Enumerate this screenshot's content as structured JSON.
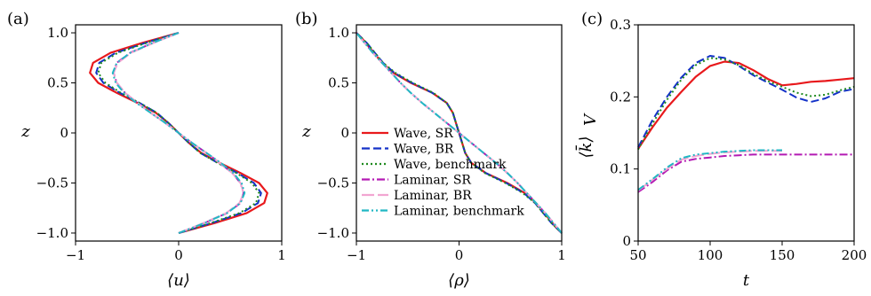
{
  "panels": {
    "a": {
      "label": "(a)"
    },
    "b": {
      "label": "(b)"
    },
    "c": {
      "label": "(c)"
    }
  },
  "colors": {
    "wave_sr": "#e8191c",
    "wave_br": "#1432c8",
    "wave_benchmark": "#1f8a1f",
    "laminar_sr": "#b31ab3",
    "laminar_br": "#f2a6d2",
    "laminar_benchmark": "#20b8c4"
  },
  "chart_data": [
    {
      "type": "line",
      "panel": "a",
      "xlabel": "⟨u⟩",
      "ylabel": "z",
      "xlim": [
        -1,
        1
      ],
      "ylim": [
        -1.08,
        1.08
      ],
      "xticks": [
        "−1",
        "0",
        "1"
      ],
      "yticks": [
        "1.0",
        "0.5",
        "0",
        "−0.5",
        "−1.0"
      ],
      "z": [
        -1.0,
        -0.9,
        -0.8,
        -0.7,
        -0.6,
        -0.5,
        -0.4,
        -0.3,
        -0.2,
        -0.1,
        0.0,
        0.1,
        0.2,
        0.3,
        0.4,
        0.5,
        0.6,
        0.7,
        0.8,
        0.9,
        1.0
      ],
      "series": [
        {
          "key": "wave_sr",
          "style": "solid",
          "values": [
            0.0,
            0.35,
            0.66,
            0.83,
            0.86,
            0.78,
            0.6,
            0.4,
            0.22,
            0.1,
            0.0,
            -0.1,
            -0.22,
            -0.4,
            -0.6,
            -0.78,
            -0.86,
            -0.83,
            -0.66,
            -0.35,
            0.0
          ]
        },
        {
          "key": "wave_br",
          "style": "dashed",
          "values": [
            0.0,
            0.32,
            0.61,
            0.77,
            0.8,
            0.73,
            0.57,
            0.38,
            0.21,
            0.1,
            0.0,
            -0.1,
            -0.21,
            -0.38,
            -0.57,
            -0.73,
            -0.8,
            -0.77,
            -0.61,
            -0.32,
            0.0
          ]
        },
        {
          "key": "wave_benchmark",
          "style": "dotted",
          "values": [
            0.0,
            0.31,
            0.59,
            0.75,
            0.78,
            0.71,
            0.56,
            0.38,
            0.21,
            0.1,
            0.0,
            -0.1,
            -0.21,
            -0.38,
            -0.56,
            -0.71,
            -0.78,
            -0.75,
            -0.59,
            -0.31,
            0.0
          ]
        },
        {
          "key": "laminar_sr",
          "style": "dashdot",
          "values": [
            0.0,
            0.25,
            0.47,
            0.6,
            0.63,
            0.6,
            0.52,
            0.4,
            0.27,
            0.13,
            0.0,
            -0.13,
            -0.27,
            -0.4,
            -0.52,
            -0.6,
            -0.63,
            -0.6,
            -0.47,
            -0.25,
            0.0
          ]
        },
        {
          "key": "laminar_br",
          "style": "longdash",
          "values": [
            0.0,
            0.24,
            0.46,
            0.59,
            0.63,
            0.6,
            0.52,
            0.4,
            0.27,
            0.13,
            0.0,
            -0.13,
            -0.27,
            -0.4,
            -0.52,
            -0.6,
            -0.63,
            -0.59,
            -0.46,
            -0.24,
            0.0
          ]
        },
        {
          "key": "laminar_benchmark",
          "style": "dashdotdot",
          "values": [
            0.0,
            0.25,
            0.47,
            0.6,
            0.64,
            0.61,
            0.53,
            0.41,
            0.27,
            0.13,
            0.0,
            -0.13,
            -0.27,
            -0.41,
            -0.53,
            -0.61,
            -0.64,
            -0.6,
            -0.47,
            -0.25,
            0.0
          ]
        }
      ]
    },
    {
      "type": "line",
      "panel": "b",
      "xlabel": "⟨ρ⟩",
      "ylabel": "z",
      "xlim": [
        -1,
        1
      ],
      "ylim": [
        -1.08,
        1.08
      ],
      "xticks": [
        "−1",
        "0",
        "1"
      ],
      "yticks": [
        "1.0",
        "0.5",
        "0",
        "−0.5",
        "−1.0"
      ],
      "z": [
        -1.0,
        -0.95,
        -0.9,
        -0.8,
        -0.7,
        -0.6,
        -0.5,
        -0.4,
        -0.3,
        -0.2,
        -0.1,
        0.0,
        0.1,
        0.2,
        0.3,
        0.4,
        0.5,
        0.6,
        0.7,
        0.8,
        0.9,
        0.95,
        1.0
      ],
      "series": [
        {
          "key": "wave_sr",
          "style": "solid",
          "values": [
            1.0,
            0.95,
            0.91,
            0.83,
            0.75,
            0.64,
            0.47,
            0.26,
            0.12,
            0.06,
            0.03,
            0.0,
            -0.03,
            -0.06,
            -0.12,
            -0.26,
            -0.47,
            -0.64,
            -0.75,
            -0.83,
            -0.91,
            -0.95,
            -1.0
          ]
        },
        {
          "key": "wave_br",
          "style": "dashed",
          "values": [
            1.0,
            0.95,
            0.9,
            0.82,
            0.74,
            0.63,
            0.46,
            0.26,
            0.12,
            0.06,
            0.03,
            0.0,
            -0.03,
            -0.06,
            -0.12,
            -0.26,
            -0.46,
            -0.63,
            -0.74,
            -0.82,
            -0.9,
            -0.95,
            -1.0
          ]
        },
        {
          "key": "wave_benchmark",
          "style": "dotted",
          "values": [
            1.0,
            0.95,
            0.9,
            0.82,
            0.74,
            0.62,
            0.45,
            0.25,
            0.12,
            0.06,
            0.03,
            0.0,
            -0.03,
            -0.06,
            -0.12,
            -0.25,
            -0.45,
            -0.62,
            -0.74,
            -0.82,
            -0.9,
            -0.95,
            -1.0
          ]
        },
        {
          "key": "laminar_sr",
          "style": "dashdot",
          "values": [
            1.0,
            0.96,
            0.92,
            0.84,
            0.75,
            0.66,
            0.57,
            0.47,
            0.36,
            0.24,
            0.12,
            0.0,
            -0.12,
            -0.24,
            -0.36,
            -0.47,
            -0.57,
            -0.66,
            -0.75,
            -0.84,
            -0.92,
            -0.96,
            -1.0
          ]
        },
        {
          "key": "laminar_br",
          "style": "longdash",
          "values": [
            1.0,
            0.96,
            0.92,
            0.84,
            0.75,
            0.66,
            0.57,
            0.47,
            0.36,
            0.24,
            0.12,
            0.0,
            -0.12,
            -0.24,
            -0.36,
            -0.47,
            -0.57,
            -0.66,
            -0.75,
            -0.84,
            -0.92,
            -0.96,
            -1.0
          ]
        },
        {
          "key": "laminar_benchmark",
          "style": "dashdotdot",
          "values": [
            1.0,
            0.96,
            0.92,
            0.84,
            0.75,
            0.66,
            0.57,
            0.47,
            0.36,
            0.24,
            0.12,
            0.0,
            -0.12,
            -0.24,
            -0.36,
            -0.47,
            -0.57,
            -0.66,
            -0.75,
            -0.84,
            -0.92,
            -0.96,
            -1.0
          ]
        }
      ],
      "legend": {
        "placement": "bottom-left",
        "entries": [
          {
            "key": "wave_sr",
            "label": "Wave, SR"
          },
          {
            "key": "wave_br",
            "label": "Wave, BR"
          },
          {
            "key": "wave_benchmark",
            "label": "Wave, benchmark"
          },
          {
            "key": "laminar_sr",
            "label": "Laminar, SR"
          },
          {
            "key": "laminar_br",
            "label": "Laminar, BR"
          },
          {
            "key": "laminar_benchmark",
            "label": "Laminar, benchmark"
          }
        ]
      }
    },
    {
      "type": "line",
      "panel": "c",
      "xlabel": "t",
      "ylabel": "⟨k̄⟩",
      "ylabel_subscript": "V",
      "xlim": [
        50,
        200
      ],
      "ylim": [
        0,
        0.3
      ],
      "xticks": [
        "50",
        "100",
        "150",
        "200"
      ],
      "yticks": [
        "0",
        "0.1",
        "0.2",
        "0.3"
      ],
      "series": [
        {
          "key": "wave_sr",
          "style": "solid",
          "x": [
            50,
            60,
            70,
            80,
            90,
            100,
            110,
            120,
            130,
            140,
            150,
            160,
            170,
            180,
            190,
            200
          ],
          "values": [
            0.128,
            0.158,
            0.185,
            0.207,
            0.228,
            0.243,
            0.249,
            0.247,
            0.237,
            0.225,
            0.216,
            0.218,
            0.221,
            0.222,
            0.224,
            0.226
          ]
        },
        {
          "key": "wave_br",
          "style": "dashed",
          "x": [
            50,
            60,
            70,
            80,
            90,
            100,
            110,
            120,
            130,
            140,
            150,
            160,
            170,
            180,
            190,
            200
          ],
          "values": [
            0.13,
            0.168,
            0.2,
            0.227,
            0.247,
            0.257,
            0.254,
            0.243,
            0.23,
            0.22,
            0.21,
            0.199,
            0.193,
            0.198,
            0.207,
            0.211
          ]
        },
        {
          "key": "wave_benchmark",
          "style": "dotted",
          "x": [
            50,
            60,
            70,
            80,
            90,
            100,
            110,
            120,
            130,
            140,
            150,
            160,
            170,
            180,
            190,
            200
          ],
          "values": [
            0.127,
            0.163,
            0.196,
            0.224,
            0.244,
            0.254,
            0.252,
            0.244,
            0.232,
            0.222,
            0.214,
            0.206,
            0.201,
            0.203,
            0.209,
            0.214
          ]
        },
        {
          "key": "laminar_sr",
          "style": "dashdot",
          "x": [
            50,
            60,
            70,
            80,
            90,
            100,
            110,
            120,
            130,
            140,
            150,
            160,
            170,
            180,
            190,
            200
          ],
          "values": [
            0.068,
            0.082,
            0.098,
            0.11,
            0.114,
            0.116,
            0.118,
            0.119,
            0.12,
            0.12,
            0.12,
            0.12,
            0.12,
            0.12,
            0.12,
            0.12
          ]
        },
        {
          "key": "laminar_br",
          "style": "longdash",
          "x": [
            50,
            60,
            70,
            80,
            90,
            100,
            110,
            120,
            130,
            140,
            150
          ],
          "values": [
            0.07,
            0.085,
            0.1,
            0.113,
            0.118,
            0.121,
            0.123,
            0.124,
            0.125,
            0.125,
            0.125
          ]
        },
        {
          "key": "laminar_benchmark",
          "style": "dashdotdot",
          "x": [
            50,
            60,
            70,
            80,
            90,
            100,
            110,
            120,
            130,
            140,
            150
          ],
          "values": [
            0.071,
            0.086,
            0.102,
            0.115,
            0.12,
            0.122,
            0.124,
            0.125,
            0.126,
            0.126,
            0.126
          ]
        }
      ]
    }
  ]
}
